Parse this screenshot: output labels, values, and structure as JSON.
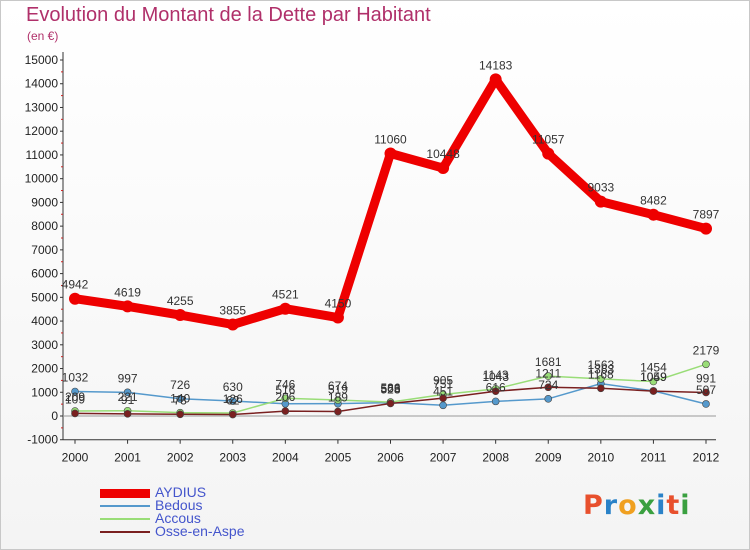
{
  "header": {
    "title": "Evolution du Montant de la Dette par Habitant",
    "subtitle": "(en €)"
  },
  "logo": {
    "text": "Proxiti",
    "colors": [
      "#e8502d",
      "#2a82c8",
      "#f0a020",
      "#3aa040",
      "#2a82c8",
      "#e8502d",
      "#3aa040"
    ]
  },
  "chart_data": {
    "type": "line",
    "title": "Evolution du Montant de la Dette par Habitant",
    "ylabel": "(en €)",
    "xlabel": "",
    "ylim": [
      -1000,
      15000
    ],
    "yticks": [
      -1000,
      0,
      1000,
      2000,
      3000,
      4000,
      5000,
      6000,
      7000,
      8000,
      9000,
      10000,
      11000,
      12000,
      13000,
      14000,
      15000
    ],
    "x": [
      "2000",
      "2001",
      "2002",
      "2003",
      "2004",
      "2005",
      "2006",
      "2007",
      "2008",
      "2009",
      "2010",
      "2011",
      "2012"
    ],
    "grid": false,
    "legend_position": "bottom-left",
    "series": [
      {
        "name": "AYDIUS",
        "color": "#ee0000",
        "values": [
          4942,
          4619,
          4255,
          3855,
          4521,
          4150,
          11060,
          10448,
          14183,
          11057,
          9033,
          8482,
          7897
        ]
      },
      {
        "name": "Bedous",
        "color": "#5599cc",
        "values": [
          1032,
          997,
          726,
          630,
          516,
          519,
          563,
          451,
          616,
          724,
          1363,
          1059,
          507
        ]
      },
      {
        "name": "Accous",
        "color": "#99dd77",
        "values": [
          209,
          221,
          140,
          126,
          746,
          674,
          586,
          905,
          1143,
          1681,
          1563,
          1454,
          2179
        ]
      },
      {
        "name": "Osse-en-Aspe",
        "color": "#7a2020",
        "values": [
          109,
          91,
          73,
          62,
          206,
          189,
          528,
          751,
          1043,
          1211,
          1168,
          1049,
          991
        ]
      }
    ]
  }
}
